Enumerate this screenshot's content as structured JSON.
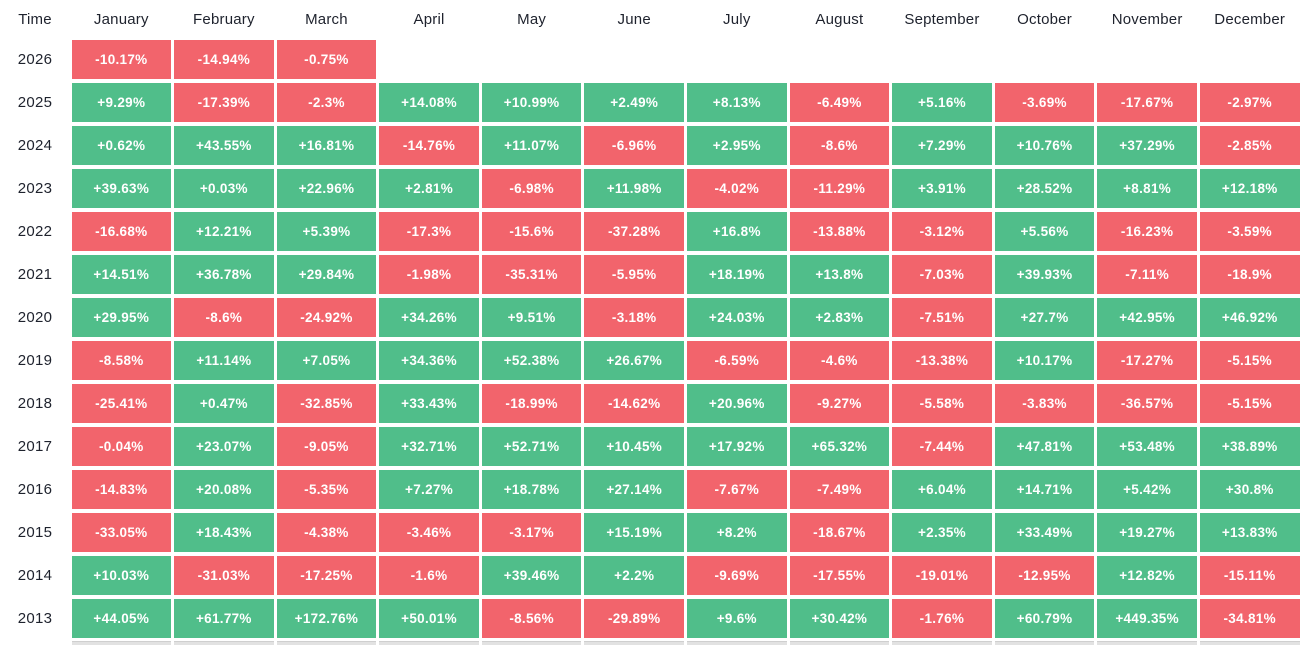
{
  "chart_data": {
    "type": "heatmap",
    "title": "Monthly returns heatmap by year",
    "corner_label": "Time",
    "value_format": "percent",
    "columns": [
      "January",
      "February",
      "March",
      "April",
      "May",
      "June",
      "July",
      "August",
      "September",
      "October",
      "November",
      "December"
    ],
    "rows": [
      {
        "year": "2026",
        "values": [
          "-10.17%",
          "-14.94%",
          "-0.75%",
          null,
          null,
          null,
          null,
          null,
          null,
          null,
          null,
          null
        ]
      },
      {
        "year": "2025",
        "values": [
          "+9.29%",
          "-17.39%",
          "-2.3%",
          "+14.08%",
          "+10.99%",
          "+2.49%",
          "+8.13%",
          "-6.49%",
          "+5.16%",
          "-3.69%",
          "-17.67%",
          "-2.97%"
        ]
      },
      {
        "year": "2024",
        "values": [
          "+0.62%",
          "+43.55%",
          "+16.81%",
          "-14.76%",
          "+11.07%",
          "-6.96%",
          "+2.95%",
          "-8.6%",
          "+7.29%",
          "+10.76%",
          "+37.29%",
          "-2.85%"
        ]
      },
      {
        "year": "2023",
        "values": [
          "+39.63%",
          "+0.03%",
          "+22.96%",
          "+2.81%",
          "-6.98%",
          "+11.98%",
          "-4.02%",
          "-11.29%",
          "+3.91%",
          "+28.52%",
          "+8.81%",
          "+12.18%"
        ]
      },
      {
        "year": "2022",
        "values": [
          "-16.68%",
          "+12.21%",
          "+5.39%",
          "-17.3%",
          "-15.6%",
          "-37.28%",
          "+16.8%",
          "-13.88%",
          "-3.12%",
          "+5.56%",
          "-16.23%",
          "-3.59%"
        ]
      },
      {
        "year": "2021",
        "values": [
          "+14.51%",
          "+36.78%",
          "+29.84%",
          "-1.98%",
          "-35.31%",
          "-5.95%",
          "+18.19%",
          "+13.8%",
          "-7.03%",
          "+39.93%",
          "-7.11%",
          "-18.9%"
        ]
      },
      {
        "year": "2020",
        "values": [
          "+29.95%",
          "-8.6%",
          "-24.92%",
          "+34.26%",
          "+9.51%",
          "-3.18%",
          "+24.03%",
          "+2.83%",
          "-7.51%",
          "+27.7%",
          "+42.95%",
          "+46.92%"
        ]
      },
      {
        "year": "2019",
        "values": [
          "-8.58%",
          "+11.14%",
          "+7.05%",
          "+34.36%",
          "+52.38%",
          "+26.67%",
          "-6.59%",
          "-4.6%",
          "-13.38%",
          "+10.17%",
          "-17.27%",
          "-5.15%"
        ]
      },
      {
        "year": "2018",
        "values": [
          "-25.41%",
          "+0.47%",
          "-32.85%",
          "+33.43%",
          "-18.99%",
          "-14.62%",
          "+20.96%",
          "-9.27%",
          "-5.58%",
          "-3.83%",
          "-36.57%",
          "-5.15%"
        ]
      },
      {
        "year": "2017",
        "values": [
          "-0.04%",
          "+23.07%",
          "-9.05%",
          "+32.71%",
          "+52.71%",
          "+10.45%",
          "+17.92%",
          "+65.32%",
          "-7.44%",
          "+47.81%",
          "+53.48%",
          "+38.89%"
        ]
      },
      {
        "year": "2016",
        "values": [
          "-14.83%",
          "+20.08%",
          "-5.35%",
          "+7.27%",
          "+18.78%",
          "+27.14%",
          "-7.67%",
          "-7.49%",
          "+6.04%",
          "+14.71%",
          "+5.42%",
          "+30.8%"
        ]
      },
      {
        "year": "2015",
        "values": [
          "-33.05%",
          "+18.43%",
          "-4.38%",
          "-3.46%",
          "-3.17%",
          "+15.19%",
          "+8.2%",
          "-18.67%",
          "+2.35%",
          "+33.49%",
          "+19.27%",
          "+13.83%"
        ]
      },
      {
        "year": "2014",
        "values": [
          "+10.03%",
          "-31.03%",
          "-17.25%",
          "-1.6%",
          "+39.46%",
          "+2.2%",
          "-9.69%",
          "-17.55%",
          "-19.01%",
          "-12.95%",
          "+12.82%",
          "-15.11%"
        ]
      },
      {
        "year": "2013",
        "values": [
          "+44.05%",
          "+61.77%",
          "+172.76%",
          "+50.01%",
          "-8.56%",
          "-29.89%",
          "+9.6%",
          "+30.42%",
          "-1.76%",
          "+60.79%",
          "+449.35%",
          "-34.81%"
        ]
      }
    ],
    "has_truncated_next_row": true,
    "colors": {
      "positive": "#50be8a",
      "negative": "#f2646c",
      "cell_text": "#ffffff",
      "label_text": "#1e222d",
      "background": "#ffffff"
    }
  }
}
